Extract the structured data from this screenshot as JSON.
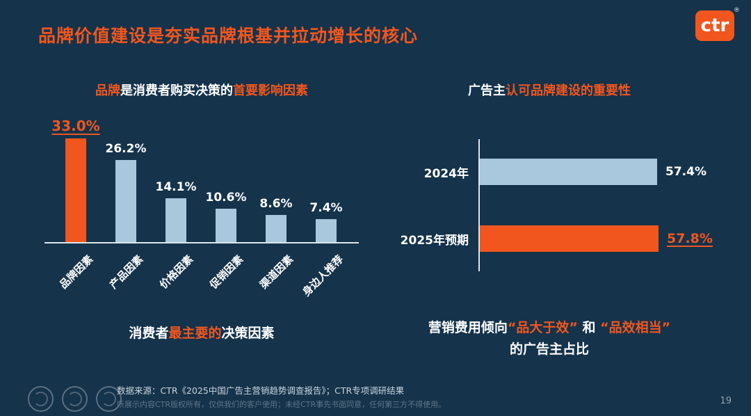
{
  "page": {
    "title": "品牌价值建设是夯实品牌根基并拉动增长的核心",
    "page_number": "19"
  },
  "logo": {
    "text": "ctr",
    "reg": "®"
  },
  "colors": {
    "background": "#15334B",
    "accent": "#F1561E",
    "bar_blue": "#A9C7DD",
    "axis": "#DDE6EE",
    "text": "#FFFFFF"
  },
  "chart_data": [
    {
      "type": "bar",
      "title": "品牌是消费者购买决策的首要影响因素",
      "categories": [
        "品牌因素",
        "产品因素",
        "价格因素",
        "促销因素",
        "渠道因素",
        "身边人推荐"
      ],
      "values": [
        33.0,
        26.2,
        14.1,
        10.6,
        8.6,
        7.4
      ],
      "unit": "%",
      "highlight_index": 0,
      "highlight_color": "#F1561E",
      "bar_color": "#A9C7DD",
      "ylim": [
        0,
        35
      ],
      "grid": false,
      "legend": "none",
      "caption": "消费者最主要的决策因素"
    },
    {
      "type": "bar",
      "orientation": "horizontal",
      "title": "广告主认可品牌建设的重要性",
      "categories": [
        "2024年",
        "2025年预期"
      ],
      "values": [
        57.4,
        57.8
      ],
      "unit": "%",
      "highlight_index": 1,
      "highlight_color": "#F1561E",
      "bar_color": "#A9C7DD",
      "xlim": [
        0,
        65
      ],
      "grid": false,
      "legend": "none",
      "caption": "营销费用倾向“品大于效” 和 “品效相当”的广告主占比"
    }
  ],
  "left_chart": {
    "title_segments": [
      {
        "text": "品牌",
        "accent": true
      },
      {
        "text": "是消费者购买决策的",
        "accent": false
      },
      {
        "text": "首要影响因素",
        "accent": true
      }
    ],
    "caption_segments": [
      {
        "text": "消费者",
        "accent": false
      },
      {
        "text": "最主要的",
        "accent": true
      },
      {
        "text": "决策因素",
        "accent": false
      }
    ]
  },
  "right_chart": {
    "title_segments": [
      {
        "text": "广告主",
        "accent": false
      },
      {
        "text": "认可品牌建设的重要性",
        "accent": true
      }
    ],
    "caption_line1_segments": [
      {
        "text": "营销费用倾向",
        "accent": false
      },
      {
        "text": "“品大于效”",
        "accent": true
      },
      {
        "text": " 和 ",
        "accent": false
      },
      {
        "text": "“品效相当”",
        "accent": true
      }
    ],
    "caption_line2": "的广告主占比"
  },
  "footer": {
    "source": "数据来源：CTR《2025中国广告主营销趋势调查报告》；CTR专项调研结果",
    "disclaimer": "所展示内容CTR版权所有，仅供我们的客户使用；未经CTR事先书面同意，任何第三方不得使用。"
  }
}
